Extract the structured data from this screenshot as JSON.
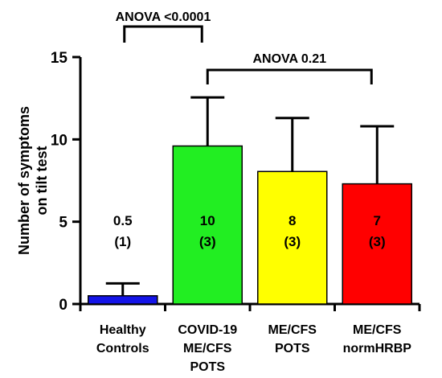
{
  "chart_data": {
    "type": "bar",
    "title": "",
    "xlabel": "",
    "ylabel": [
      "Number of symptoms",
      "on tilt test"
    ],
    "ylim": [
      0,
      15
    ],
    "yticks": [
      0,
      5,
      10,
      15
    ],
    "grid": false,
    "categories": [
      [
        "Healthy",
        "Controls"
      ],
      [
        "COVID-19",
        "ME/CFS",
        "POTS"
      ],
      [
        "ME/CFS",
        "POTS"
      ],
      [
        "ME/CFS",
        "normHRBP"
      ]
    ],
    "values": [
      0.5,
      9.6,
      8.05,
      7.3
    ],
    "error_upper": [
      1.25,
      12.55,
      11.3,
      10.8
    ],
    "colors": [
      "#1414e8",
      "#22ee22",
      "#ffff00",
      "#ff0000"
    ],
    "bar_labels": [
      [
        "0.5",
        "(1)"
      ],
      [
        "10",
        "(3)"
      ],
      [
        "8",
        "(3)"
      ],
      [
        "7",
        "(3)"
      ]
    ],
    "annotations": [
      {
        "text": "ANOVA <0.0001",
        "from_bar": 1,
        "to_bar": 2
      },
      {
        "text": "ANOVA 0.21",
        "from_bar": 2,
        "to_bar": 4
      }
    ]
  }
}
